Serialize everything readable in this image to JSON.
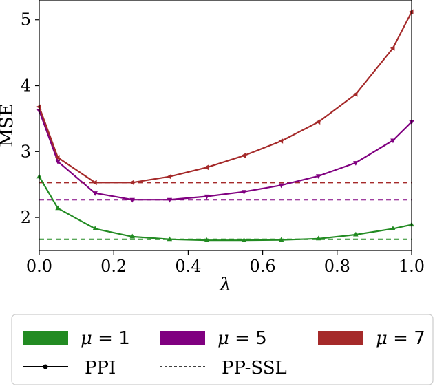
{
  "chart_data": {
    "type": "line",
    "xlabel": "λ",
    "ylabel": "MSE",
    "xlim": [
      0.0,
      1.0
    ],
    "ylim": [
      1.5,
      5.3
    ],
    "xticks": [
      0.0,
      0.2,
      0.4,
      0.6,
      0.8,
      1.0
    ],
    "xtick_labels": [
      "0.0",
      "0.2",
      "0.4",
      "0.6",
      "0.8",
      "1.0"
    ],
    "yticks": [
      2,
      3,
      4,
      5
    ],
    "ytick_labels": [
      "2",
      "3",
      "4",
      "5"
    ],
    "grid": false,
    "x": [
      0.0,
      0.05,
      0.15,
      0.25,
      0.35,
      0.45,
      0.55,
      0.65,
      0.75,
      0.85,
      0.95,
      1.0
    ],
    "series": [
      {
        "name": "μ = 1",
        "mu_label": "μ",
        "mu_value": "= 1",
        "color": "#228B22",
        "marker": "triangle-up",
        "values": [
          2.62,
          2.14,
          1.83,
          1.71,
          1.67,
          1.655,
          1.655,
          1.66,
          1.68,
          1.74,
          1.83,
          1.89
        ],
        "baseline": 1.67
      },
      {
        "name": "μ = 5",
        "mu_label": "μ",
        "mu_value": "= 5",
        "color": "#800080",
        "marker": "triangle-down",
        "values": [
          3.62,
          2.85,
          2.37,
          2.27,
          2.27,
          2.32,
          2.39,
          2.49,
          2.63,
          2.83,
          3.17,
          3.45
        ],
        "baseline": 2.27
      },
      {
        "name": "μ = 7",
        "mu_label": "μ",
        "mu_value": "= 7",
        "color": "#A52A2A",
        "marker": "triangle-left",
        "values": [
          3.68,
          2.91,
          2.53,
          2.53,
          2.62,
          2.76,
          2.94,
          3.16,
          3.45,
          3.87,
          4.57,
          5.12
        ],
        "baseline": 2.53
      }
    ],
    "legend": {
      "position": "bottom",
      "style_entries": [
        {
          "label": "PPI",
          "style": "solid"
        },
        {
          "label": "PP-SSL",
          "style": "dashed"
        }
      ]
    }
  }
}
